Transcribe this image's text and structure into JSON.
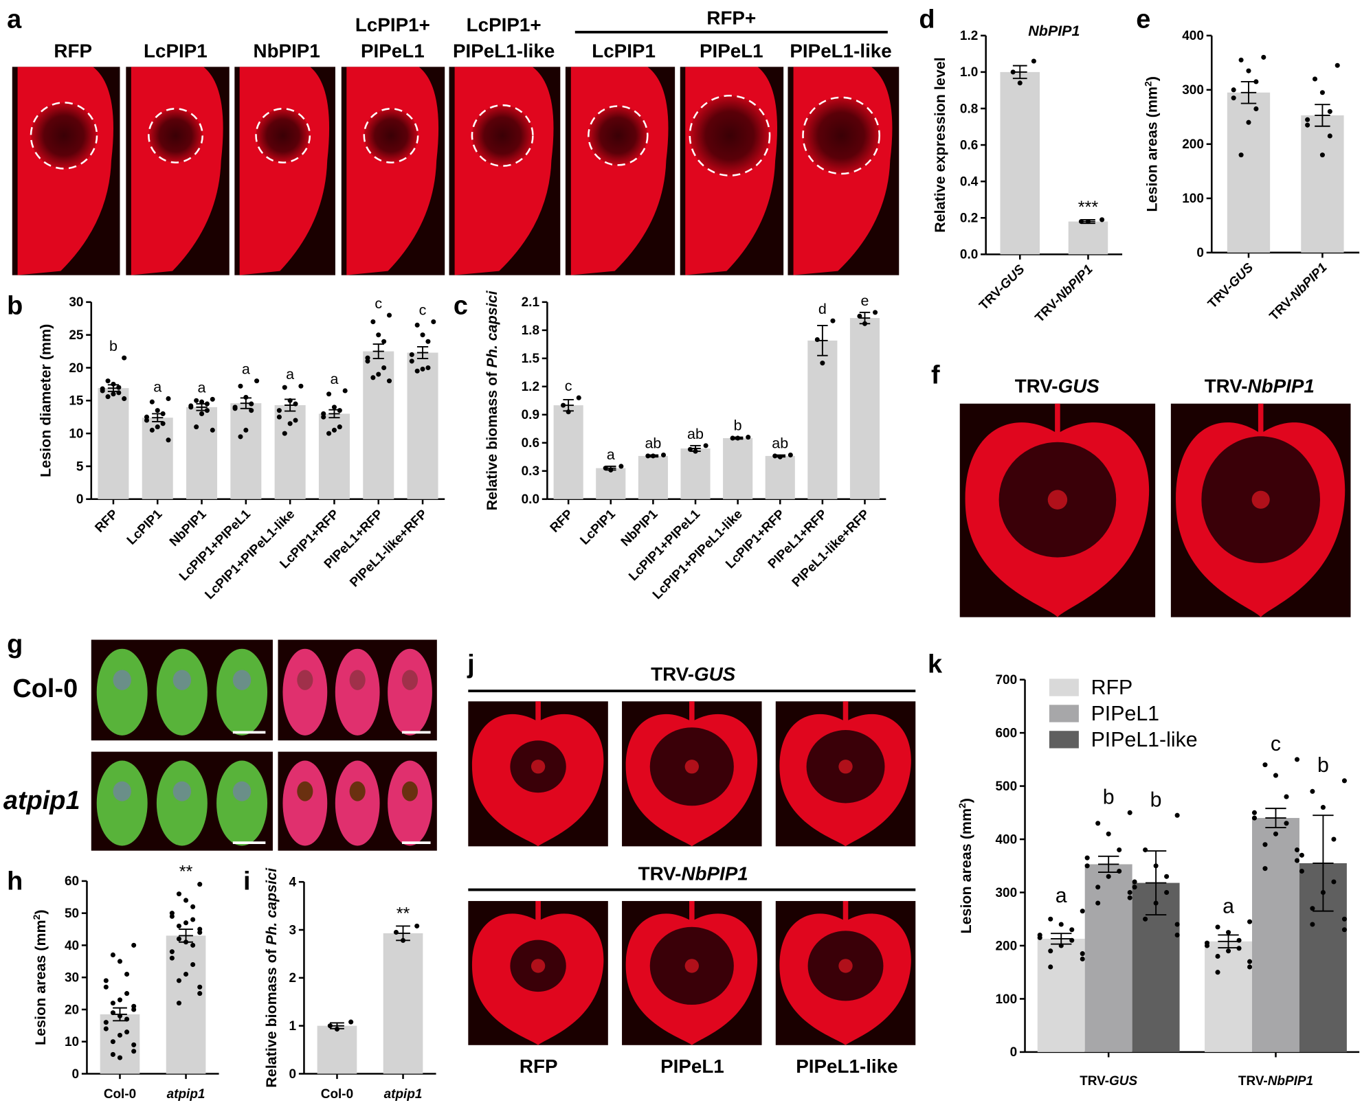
{
  "panel_letters": {
    "a": "a",
    "b": "b",
    "c": "c",
    "d": "d",
    "e": "e",
    "f": "f",
    "g": "g",
    "h": "h",
    "i": "i",
    "j": "j",
    "k": "k"
  },
  "panel_a": {
    "group_header": "RFP+",
    "columns": [
      {
        "line1": "",
        "line2": "RFP"
      },
      {
        "line1": "",
        "line2": "LcPIP1"
      },
      {
        "line1": "",
        "line2": "NbPIP1"
      },
      {
        "line1": "LcPIP1+",
        "line2": "PIPeL1"
      },
      {
        "line1": "LcPIP1+",
        "line2": "PIPeL1-like"
      },
      {
        "line1": "",
        "line2": "LcPIP1"
      },
      {
        "line1": "",
        "line2": "PIPeL1"
      },
      {
        "line1": "",
        "line2": "PIPeL1-like"
      }
    ]
  },
  "panel_f": {
    "labels": [
      {
        "plain": "TRV-",
        "italic": "GUS"
      },
      {
        "plain": "TRV-",
        "italic": "NbPIP1"
      }
    ]
  },
  "panel_g": {
    "rows": [
      "Col-0",
      "atpip1"
    ]
  },
  "panel_j": {
    "rows": [
      {
        "plain": "TRV-",
        "italic": "GUS"
      },
      {
        "plain": "TRV-",
        "italic": "NbPIP1"
      }
    ],
    "columns": [
      "RFP",
      "PIPeL1",
      "PIPeL1-like"
    ]
  },
  "colors": {
    "bar": "#d3d3d3",
    "leaf_red": "#e0061e",
    "background_dark": "#1a0000",
    "text": "#000000"
  },
  "chart_data": [
    {
      "id": "b",
      "type": "bar",
      "title": "",
      "ylabel": "Lesion diameter (mm)",
      "ylim": [
        0,
        30
      ],
      "yticks": [
        0,
        5,
        10,
        15,
        20,
        25,
        30
      ],
      "categories": [
        "RFP",
        "LcPIP1",
        "NbPIP1",
        "LcPIP1+PIPeL1",
        "LcPIP1+PIPeL1-like",
        "LcPIP1+RFP",
        "PIPeL1+RFP",
        "PIPeL1-like+RFP"
      ],
      "values": [
        16.9,
        12.4,
        14.0,
        14.6,
        14.3,
        13.0,
        22.5,
        22.3
      ],
      "errors": [
        0.5,
        0.6,
        0.5,
        0.8,
        0.9,
        0.6,
        1.1,
        0.9
      ],
      "letters": [
        "b",
        "a",
        "a",
        "a",
        "a",
        "a",
        "c",
        "c"
      ],
      "points": [
        [
          21.5,
          18,
          17.5,
          17,
          16.8,
          16.5,
          16.2,
          16,
          15.6,
          15.3
        ],
        [
          15.3,
          14.8,
          13.5,
          13,
          12.5,
          12,
          11.5,
          11,
          10.5,
          9
        ],
        [
          15.2,
          15,
          14.8,
          14.5,
          14.2,
          14,
          13.5,
          13,
          11,
          10.5
        ],
        [
          18,
          17.2,
          15.5,
          14.5,
          14,
          13.8,
          13.5,
          10.5,
          9.5
        ],
        [
          17.2,
          17,
          15,
          14.5,
          13.5,
          12.5,
          12,
          11.5,
          10
        ],
        [
          16.5,
          16,
          14,
          13.5,
          13,
          12.5,
          11,
          10.5,
          10
        ],
        [
          28,
          27,
          25,
          24,
          21.5,
          21,
          20,
          19,
          18.5,
          18
        ],
        [
          27,
          26.5,
          25,
          24,
          22,
          21,
          20,
          19.8,
          19.5
        ]
      ]
    },
    {
      "id": "c",
      "type": "bar",
      "title": "",
      "ylabel": {
        "plain": "Relative biomass of ",
        "italic": "Ph. capsici"
      },
      "ylim": [
        0,
        2.1
      ],
      "yticks": [
        0.0,
        0.3,
        0.6,
        0.9,
        1.2,
        1.5,
        1.8,
        2.1
      ],
      "categories": [
        "RFP",
        "LcPIP1",
        "NbPIP1",
        "LcPIP1+PIPeL1",
        "LcPIP1+PIPeL1-like",
        "LcPIP1+RFP",
        "PIPeL1+RFP",
        "PIPeL1-like+RFP"
      ],
      "values": [
        1.0,
        0.33,
        0.46,
        0.54,
        0.65,
        0.46,
        1.69,
        1.93
      ],
      "errors": [
        0.06,
        0.02,
        0.01,
        0.03,
        0.01,
        0.01,
        0.16,
        0.06
      ],
      "letters": [
        "c",
        "a",
        "ab",
        "ab",
        "b",
        "ab",
        "d",
        "e"
      ],
      "points": [
        [
          1.08,
          1.0,
          0.93
        ],
        [
          0.35,
          0.33,
          0.31
        ],
        [
          0.47,
          0.46,
          0.46
        ],
        [
          0.57,
          0.53,
          0.51
        ],
        [
          0.66,
          0.65,
          0.65
        ],
        [
          0.47,
          0.46,
          0.45
        ],
        [
          1.9,
          1.7,
          1.45
        ],
        [
          1.99,
          1.95,
          1.87
        ]
      ]
    },
    {
      "id": "d",
      "type": "bar",
      "title": "NbPIP1",
      "ylabel": "Relative expression level",
      "ylim": [
        0,
        1.2
      ],
      "yticks": [
        0.0,
        0.2,
        0.4,
        0.6,
        0.8,
        1.0,
        1.2
      ],
      "categories": [
        {
          "plain": "TRV-",
          "italic": "GUS"
        },
        {
          "plain": "TRV-",
          "italic": "NbPIP1"
        }
      ],
      "values": [
        1.0,
        0.18
      ],
      "errors": [
        0.035,
        0.01
      ],
      "letters": [
        "",
        "***"
      ],
      "points": [
        [
          1.06,
          1.0,
          0.94
        ],
        [
          0.19,
          0.18,
          0.18
        ]
      ]
    },
    {
      "id": "e",
      "type": "bar",
      "title": "",
      "ylabel": "Lesion areas (mm2)",
      "ylim": [
        0,
        400
      ],
      "yticks": [
        0,
        100,
        200,
        300,
        400
      ],
      "categories": [
        {
          "plain": "TRV-",
          "italic": "GUS"
        },
        {
          "plain": "TRV-",
          "italic": "NbPIP1"
        }
      ],
      "values": [
        295,
        253
      ],
      "errors": [
        20,
        20
      ],
      "letters": [
        "",
        ""
      ],
      "points": [
        [
          360,
          355,
          335,
          315,
          300,
          285,
          265,
          240,
          180
        ],
        [
          345,
          320,
          295,
          260,
          245,
          235,
          215,
          180
        ]
      ]
    },
    {
      "id": "h",
      "type": "bar",
      "title": "",
      "ylabel": "Lesion areas (mm2)",
      "ylim": [
        0,
        60
      ],
      "yticks": [
        0,
        10,
        20,
        30,
        40,
        50,
        60
      ],
      "categories": [
        {
          "plain": "Col-0",
          "italic": ""
        },
        {
          "plain": "",
          "italic": "atpip1"
        }
      ],
      "values": [
        18.5,
        43
      ],
      "errors": [
        2,
        2
      ],
      "letters": [
        "",
        "**"
      ],
      "points": [
        [
          40,
          37,
          35,
          31,
          29,
          27,
          25,
          23,
          22,
          21,
          20,
          19,
          18,
          17,
          16,
          14,
          13,
          12,
          10,
          9,
          7,
          6,
          5
        ],
        [
          59,
          56,
          54,
          52,
          50,
          49,
          48,
          47,
          46,
          45,
          44,
          42,
          41,
          40,
          38,
          36,
          34,
          31,
          29,
          27,
          25,
          22
        ]
      ]
    },
    {
      "id": "i",
      "type": "bar",
      "title": "",
      "ylabel": {
        "plain": "Relative biomass of ",
        "italic": "Ph. capsici"
      },
      "ylim": [
        0,
        4
      ],
      "yticks": [
        0,
        1,
        2,
        3,
        4
      ],
      "categories": [
        {
          "plain": "Col-0",
          "italic": ""
        },
        {
          "plain": "",
          "italic": "atpip1"
        }
      ],
      "values": [
        1.0,
        2.93
      ],
      "errors": [
        0.06,
        0.15
      ],
      "letters": [
        "",
        "**"
      ],
      "points": [
        [
          1.08,
          1.0,
          0.93
        ],
        [
          3.08,
          2.95,
          2.78
        ]
      ]
    },
    {
      "id": "k",
      "type": "grouped-bar",
      "title": "",
      "ylabel": "Lesion areas (mm2)",
      "ylim": [
        0,
        700
      ],
      "yticks": [
        0,
        100,
        200,
        300,
        400,
        500,
        600,
        700
      ],
      "legend_position": "top-left",
      "categories": [
        {
          "plain": "TRV-",
          "italic": "GUS"
        },
        {
          "plain": "TRV-",
          "italic": "NbPIP1"
        }
      ],
      "series": [
        {
          "name": "RFP",
          "color": "#d9d9d9",
          "values": [
            213,
            208
          ],
          "errors": [
            10,
            12
          ],
          "letters": [
            "a",
            "a"
          ],
          "points": [
            [
              265,
              250,
              240,
              230,
              220,
              215,
              210,
              200,
              190,
              185,
              175,
              160
            ],
            [
              245,
              235,
              225,
              210,
              205,
              200,
              195,
              190,
              180,
              170,
              160,
              150
            ]
          ]
        },
        {
          "name": "PIPeL1",
          "color": "#a7a7a9",
          "values": [
            353,
            440
          ],
          "errors": [
            15,
            18
          ],
          "letters": [
            "b",
            "c"
          ],
          "points": [
            [
              450,
              430,
              410,
              380,
              365,
              350,
              340,
              330,
              310,
              300,
              290,
              280
            ],
            [
              550,
              540,
              520,
              480,
              450,
              440,
              430,
              410,
              390,
              380,
              360,
              345
            ]
          ]
        },
        {
          "name": "PIPeL1-like",
          "color": "#5f5f5f",
          "values": [
            318,
            355
          ],
          "errors": [
            60,
            90
          ],
          "letters": [
            "b",
            "b"
          ],
          "points": [
            [
              445,
              380,
              350,
              330,
              320,
              310,
              300,
              280,
              250,
              240,
              220
            ],
            [
              510,
              490,
              460,
              400,
              370,
              340,
              320,
              300,
              270,
              250,
              230,
              240
            ]
          ]
        }
      ]
    }
  ]
}
